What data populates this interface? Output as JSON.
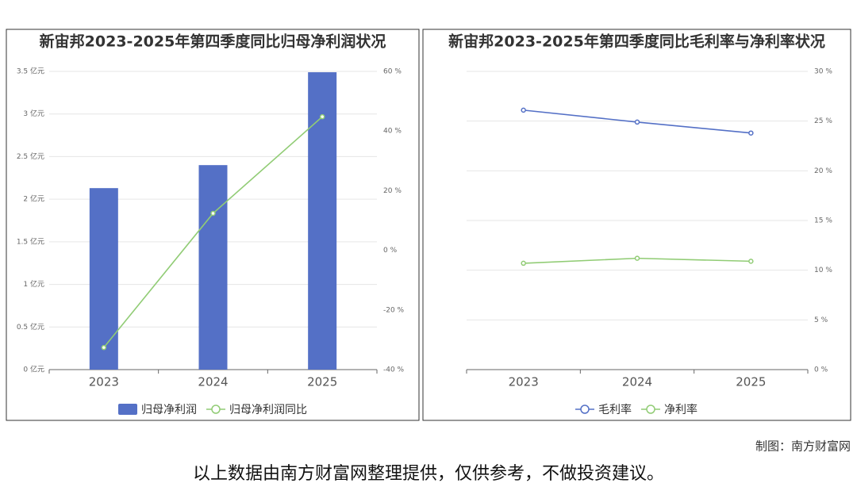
{
  "chart_data": [
    {
      "type": "bar",
      "title": "新宙邦2023-2025年第四季度同比归母净利润状况",
      "categories": [
        "2023",
        "2024",
        "2025"
      ],
      "series": [
        {
          "name": "归母净利润",
          "type": "bar",
          "color": "#5470c6",
          "values": [
            2.13,
            2.4,
            3.49
          ]
        },
        {
          "name": "归母净利润同比",
          "type": "line",
          "axis": "y2",
          "color": "#91cc75",
          "values": [
            -32.6,
            12.4,
            44.8
          ]
        }
      ],
      "ylim": [
        0,
        3.5
      ],
      "yticks": [
        {
          "value": 0,
          "label": "0 亿元"
        },
        {
          "value": 0.5,
          "label": "0.5 亿元"
        },
        {
          "value": 1,
          "label": "1 亿元"
        },
        {
          "value": 1.5,
          "label": "1.5 亿元"
        },
        {
          "value": 2,
          "label": "2 亿元"
        },
        {
          "value": 2.5,
          "label": "2.5 亿元"
        },
        {
          "value": 3,
          "label": "3 亿元"
        },
        {
          "value": 3.5,
          "label": "3.5 亿元"
        }
      ],
      "y2lim": [
        -40,
        60
      ],
      "y2ticks": [
        {
          "value": -40,
          "label": "-40 %"
        },
        {
          "value": -20,
          "label": "-20 %"
        },
        {
          "value": 0,
          "label": "0 %"
        },
        {
          "value": 20,
          "label": "20 %"
        },
        {
          "value": 40,
          "label": "40 %"
        },
        {
          "value": 60,
          "label": "60 %"
        }
      ],
      "grid": true
    },
    {
      "type": "line",
      "title": "新宙邦2023-2025年第四季度同比毛利率与净利率状况",
      "categories": [
        "2023",
        "2024",
        "2025"
      ],
      "series": [
        {
          "name": "毛利率",
          "type": "line",
          "axis": "y2",
          "color": "#5470c6",
          "values": [
            26.1,
            24.9,
            23.8
          ]
        },
        {
          "name": "净利率",
          "type": "line",
          "axis": "y2",
          "color": "#91cc75",
          "values": [
            10.7,
            11.2,
            10.9
          ]
        }
      ],
      "y2lim": [
        0,
        30
      ],
      "y2ticks": [
        {
          "value": 0,
          "label": "0 %"
        },
        {
          "value": 5,
          "label": "5 %"
        },
        {
          "value": 10,
          "label": "10 %"
        },
        {
          "value": 15,
          "label": "15 %"
        },
        {
          "value": 20,
          "label": "20 %"
        },
        {
          "value": 25,
          "label": "25 %"
        },
        {
          "value": 30,
          "label": "30 %"
        }
      ],
      "grid": true
    }
  ],
  "credit": "制图：南方财富网",
  "disclaimer": "以上数据由南方财富网整理提供，仅供参考，不做投资建议。"
}
